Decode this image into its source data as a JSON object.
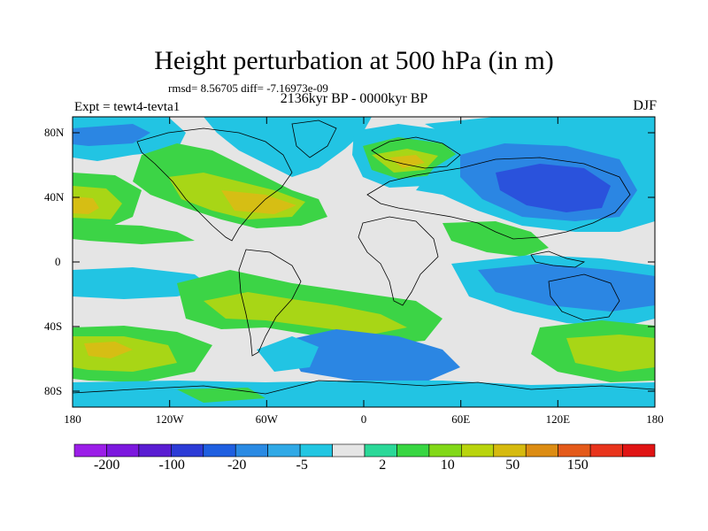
{
  "header": {
    "title": "Height perturbation at 500 hPa (in m)",
    "stats": "rmsd= 8.56705 diff= -7.16973e-09",
    "period": "2136kyr BP - 0000kyr BP",
    "experiment": "Expt = tewt4-tevta1",
    "season": "DJF"
  },
  "axes": {
    "lat_ticks": [
      "80N",
      "40N",
      "0",
      "40S",
      "80S"
    ],
    "lon_ticks": [
      "180",
      "120W",
      "60W",
      "0",
      "60E",
      "120E",
      "180"
    ]
  },
  "colorbar": {
    "labels": [
      "-200",
      "-100",
      "-20",
      "-5",
      "2",
      "10",
      "50",
      "150"
    ],
    "colors": [
      "#9b1ee8",
      "#7c18de",
      "#5a1dd2",
      "#2c3bd6",
      "#1f5fe0",
      "#2a8ae3",
      "#30a9e6",
      "#22c6e2",
      "#e5e5e5",
      "#2bd898",
      "#38d642",
      "#82d818",
      "#b9d40d",
      "#d6ba0f",
      "#dc8c13",
      "#e45a1a",
      "#e8341c",
      "#e01414"
    ]
  },
  "palette": {
    "blue_dark": "#2a52dc",
    "blue_mid": "#2b86e3",
    "cyan": "#22c4e3",
    "neutral": "#e5e5e5",
    "teal": "#2bd898",
    "green": "#3cd446",
    "yellow_green": "#a8d616",
    "mustard": "#d6be14",
    "orange": "#df8c16"
  }
}
